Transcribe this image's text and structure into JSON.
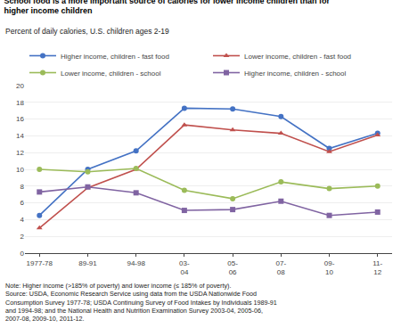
{
  "chart_data": {
    "type": "line",
    "title": "School food is a more important source of calories for lower income children than for\nhigher income children",
    "subtitle": "Percent of daily calories, U.S. children ages 2-19",
    "note": "Note: Higher income (>185% of poverty) and lower income (≤ 185% of poverty).\nSource: USDA, Economic Research Service using data from the USDA Nationwide Food\nConsumption Survey 1977-78; USDA Continuing Survey of Food Intakes by Individuals 1989-91\nand 1994-98; and the National Health and Nutrition Examination Survey 2003-04, 2005-06,\n2007-08, 2009-10, 2011-12.",
    "categories": [
      "1977-78",
      "89-91",
      "94-98",
      "03-\n04",
      "05-\n06",
      "07-\n08",
      "09-\n10",
      "11-\n12"
    ],
    "series": [
      {
        "name": "Higher income, children - fast food",
        "color": "#4472C4",
        "marker": "circle",
        "values": [
          4.5,
          10.0,
          12.2,
          17.3,
          17.2,
          16.3,
          12.5,
          14.3
        ]
      },
      {
        "name": "Lower income, children - fast food",
        "color": "#C0504D",
        "marker": "triangle-up",
        "values": [
          3.0,
          7.8,
          10.0,
          15.3,
          14.7,
          14.3,
          12.1,
          14.1
        ]
      },
      {
        "name": "Lower income, children - school",
        "color": "#9BBB59",
        "marker": "circle",
        "values": [
          10.0,
          9.7,
          10.1,
          7.5,
          6.5,
          8.5,
          7.7,
          8.0
        ]
      },
      {
        "name": "Higher income, children - school",
        "color": "#8064A2",
        "marker": "square",
        "values": [
          7.3,
          7.9,
          7.2,
          5.1,
          5.2,
          6.2,
          4.5,
          4.9
        ]
      }
    ],
    "ylim": [
      0,
      20
    ],
    "yticks": [
      0,
      2,
      4,
      6,
      8,
      10,
      12,
      14,
      16,
      18,
      20
    ],
    "grid": true,
    "legend": "top"
  }
}
